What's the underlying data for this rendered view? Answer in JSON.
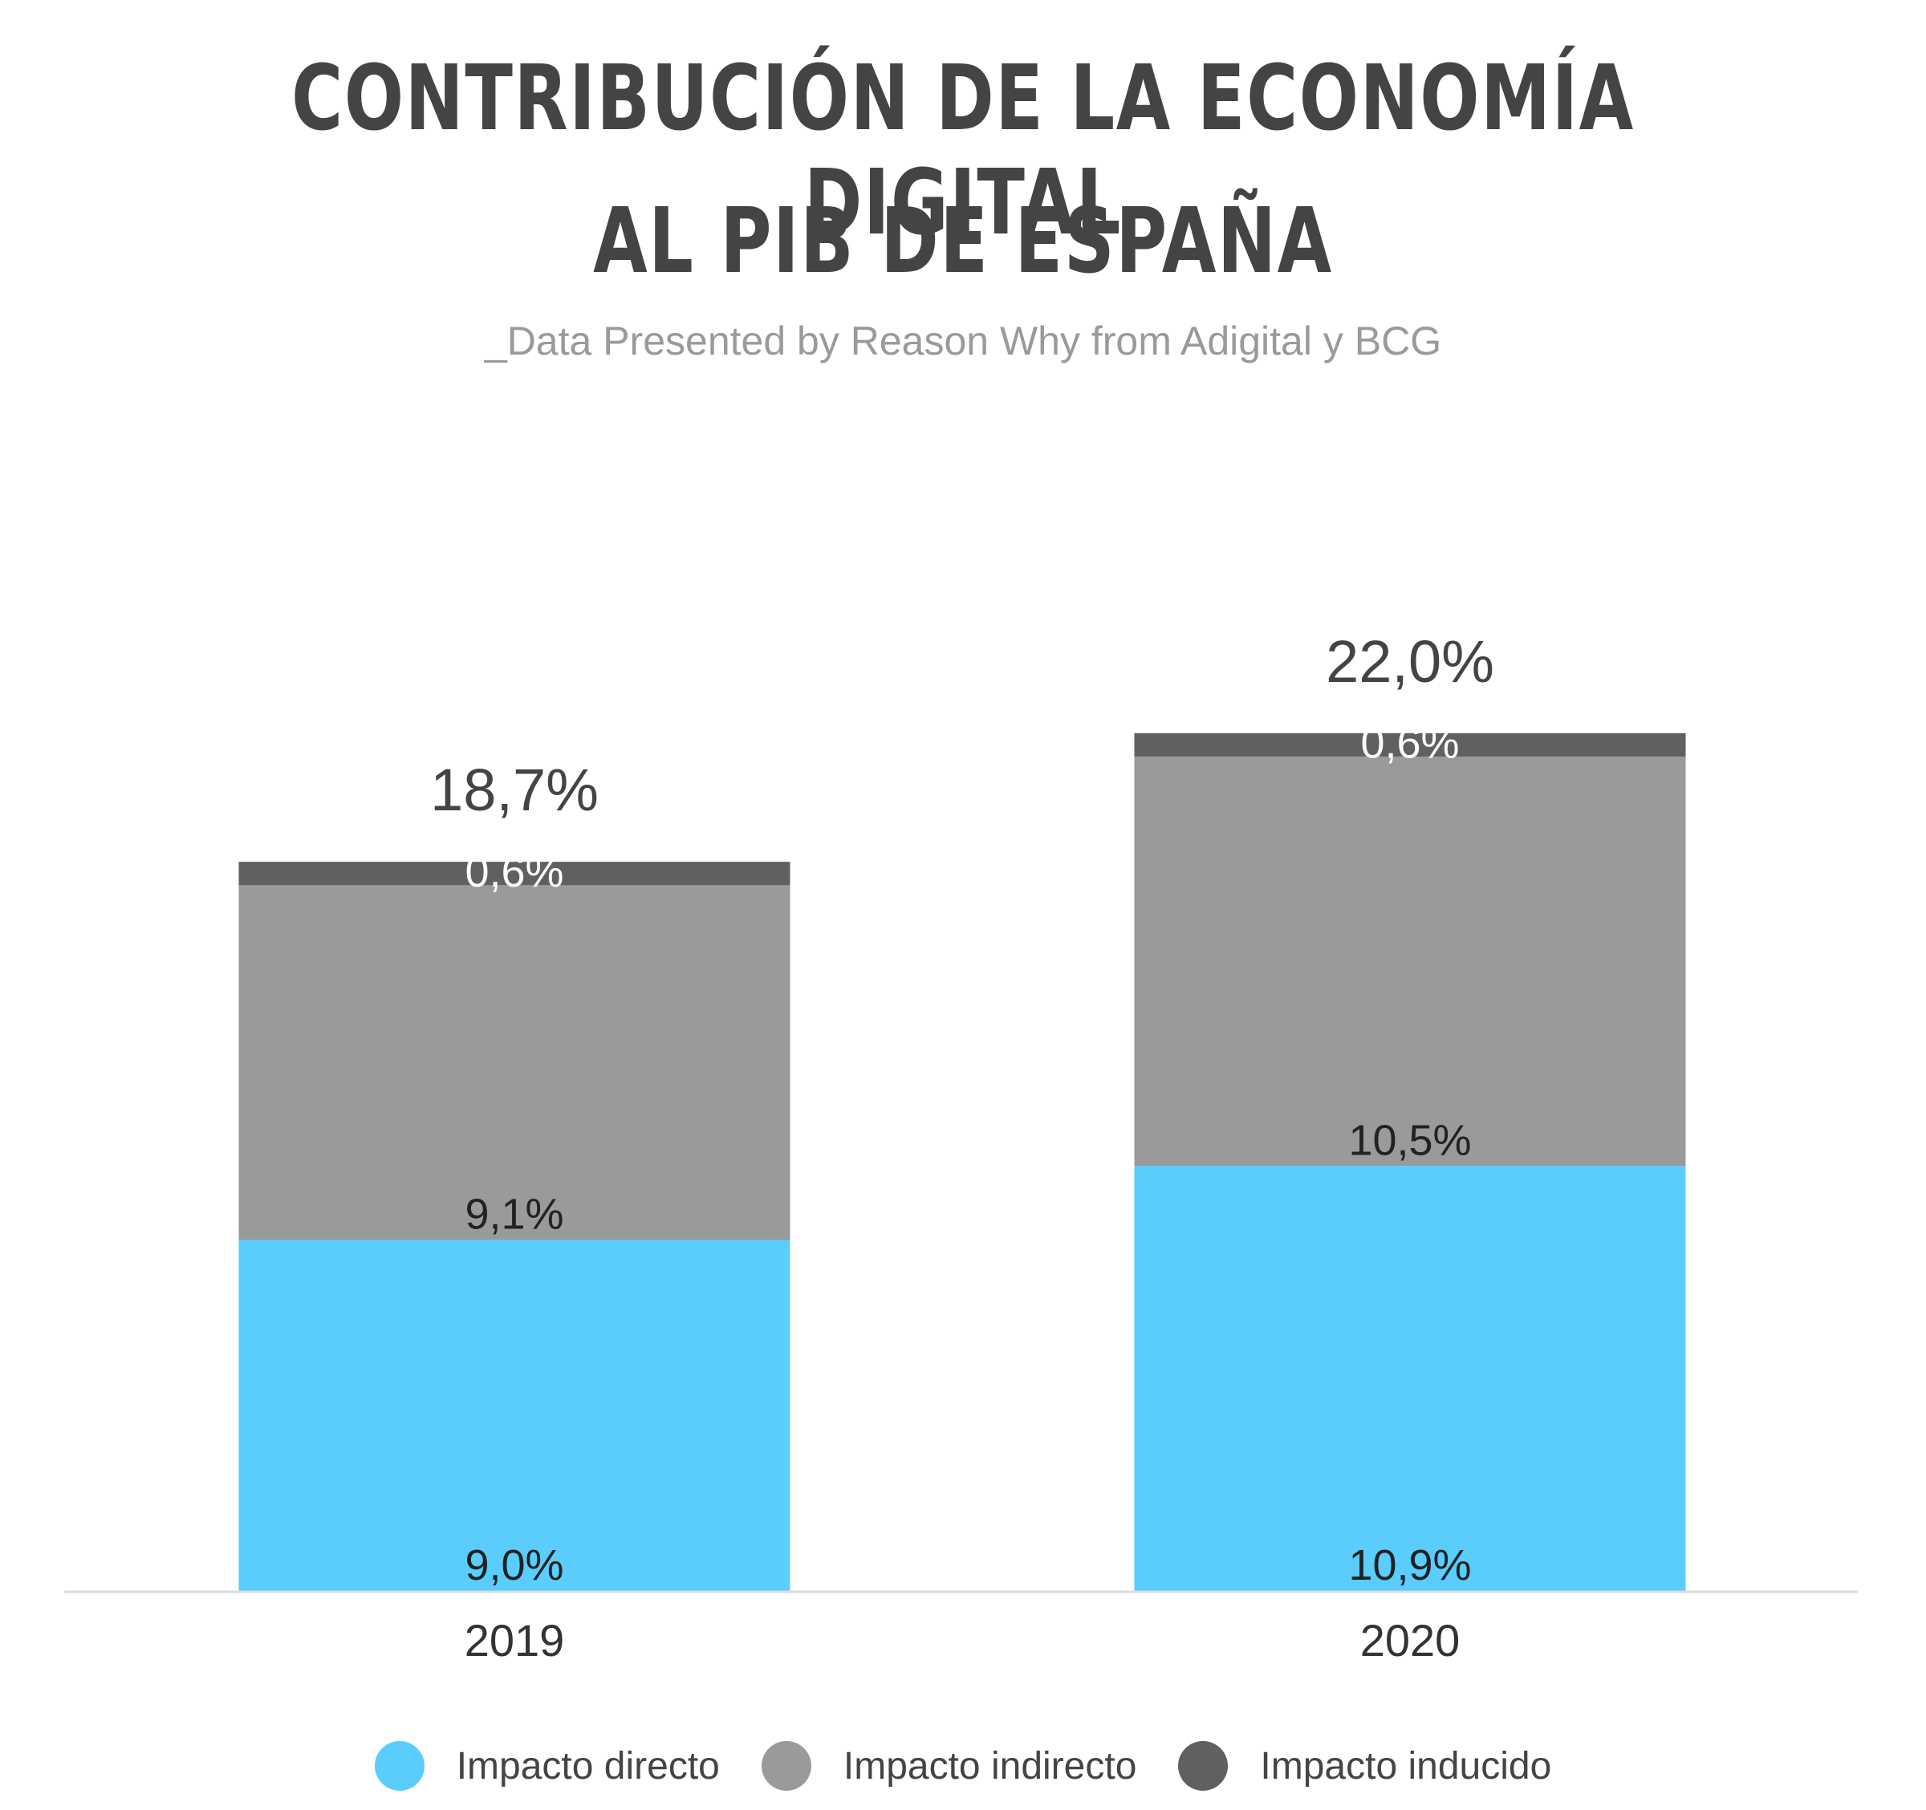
{
  "title_lines": [
    "CONTRIBUCIÓN DE LA ECONOMÍA DIGITAL",
    "AL PIB DE ESPAÑA"
  ],
  "subtitle": "_Data Presented by Reason Why from Adigital y BCG",
  "chart_data": {
    "type": "bar",
    "stacked": true,
    "categories": [
      "2019",
      "2020"
    ],
    "series": [
      {
        "name": "Impacto directo",
        "color": "#5acdfc",
        "values": [
          9.0,
          10.9
        ],
        "labels": [
          "9,0%",
          "10,9%"
        ],
        "label_color": "#222222"
      },
      {
        "name": "Impacto indirecto",
        "color": "#9a9a9a",
        "values": [
          9.1,
          10.5
        ],
        "labels": [
          "9,1%",
          "10,5%"
        ],
        "label_color": "#222222"
      },
      {
        "name": "Impacto inducido",
        "color": "#606060",
        "values": [
          0.6,
          0.6
        ],
        "labels": [
          "0,6%",
          "0,6%"
        ],
        "label_color": "#ffffff"
      }
    ],
    "totals": [
      18.7,
      22.0
    ],
    "total_labels": [
      "18,7%",
      "22,0%"
    ],
    "legend_position": "bottom",
    "grid": false,
    "y_axis_visible": false
  }
}
